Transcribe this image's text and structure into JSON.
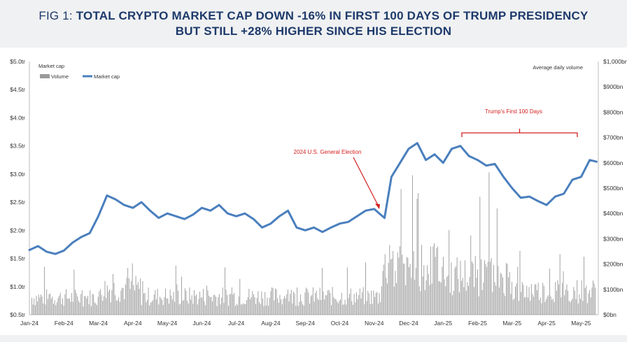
{
  "title": {
    "prefix": "FIG 1: ",
    "line1": "TOTAL CRYPTO MARKET CAP DOWN -16% IN FIRST 100 DAYS OF TRUMP PRESIDENCY",
    "line2": "BUT STILL +28% HIGHER SINCE HIS ELECTION"
  },
  "colors": {
    "title": "#1d3a6b",
    "market_cap_line": "#4a7fbd",
    "volume_bars": "#9a9a9a",
    "annotation": "#d42020",
    "background_band": "#f0f1f2"
  },
  "chart_data": {
    "type": "line",
    "left_axis_title": "Market cap",
    "right_axis_title": "Average daily volume",
    "left_ticks": [
      "$0.5tr",
      "$1.0tr",
      "$1.5tr",
      "$2.0tr",
      "$2.5tr",
      "$3.0tr",
      "$3.5tr",
      "$4.0tr",
      "$4.5tr",
      "$5.0tr"
    ],
    "right_ticks": [
      "$0bn",
      "$100bn",
      "$200bn",
      "$300bn",
      "$400bn",
      "$500bn",
      "$600bn",
      "$700bn",
      "$800bn",
      "$900bn",
      "$1,000bn"
    ],
    "x_ticks": [
      "Jan-24",
      "Feb-24",
      "Mar-24",
      "Apr-24",
      "May-24",
      "Jun-24",
      "Jul-24",
      "Aug-24",
      "Sep-24",
      "Oct-24",
      "Nov-24",
      "Dec-24",
      "Jan-25",
      "Feb-25",
      "Mar-25",
      "Apr-25",
      "May-25"
    ],
    "left_range": [
      0.5,
      5.0
    ],
    "right_range": [
      0,
      1000
    ],
    "legend": [
      {
        "name": "Volume",
        "type": "bar"
      },
      {
        "name": "Market cap",
        "type": "line"
      }
    ],
    "legend_position": "top-left",
    "annotations": {
      "election": "2024 U.S. General Election",
      "first_100_days": "Trump's First 100 Days"
    },
    "market_cap": {
      "name": "Market cap",
      "unit": "$tr",
      "x_month_index": [
        0,
        0.25,
        0.5,
        0.75,
        1.0,
        1.25,
        1.5,
        1.75,
        2.0,
        2.25,
        2.5,
        2.75,
        3.0,
        3.25,
        3.5,
        3.75,
        4.0,
        4.25,
        4.5,
        4.75,
        5.0,
        5.25,
        5.5,
        5.75,
        6.0,
        6.25,
        6.5,
        6.75,
        7.0,
        7.25,
        7.5,
        7.75,
        8.0,
        8.25,
        8.5,
        8.75,
        9.0,
        9.25,
        9.5,
        9.75,
        10.0,
        10.15,
        10.3,
        10.5,
        10.75,
        11.0,
        11.25,
        11.5,
        11.75,
        12.0,
        12.25,
        12.5,
        12.75,
        13.0,
        13.25,
        13.5,
        13.75,
        14.0,
        14.25,
        14.5,
        14.75,
        15.0,
        15.25,
        15.5,
        15.75,
        16.0,
        16.25,
        16.45
      ],
      "values": [
        1.65,
        1.72,
        1.62,
        1.58,
        1.64,
        1.78,
        1.88,
        1.95,
        2.25,
        2.62,
        2.55,
        2.45,
        2.4,
        2.5,
        2.35,
        2.22,
        2.3,
        2.25,
        2.2,
        2.28,
        2.4,
        2.35,
        2.45,
        2.3,
        2.25,
        2.3,
        2.2,
        2.05,
        2.12,
        2.25,
        2.35,
        2.05,
        2.0,
        2.05,
        1.97,
        2.05,
        2.12,
        2.15,
        2.25,
        2.35,
        2.38,
        2.3,
        2.22,
        2.95,
        3.2,
        3.45,
        3.55,
        3.25,
        3.35,
        3.2,
        3.45,
        3.5,
        3.32,
        3.25,
        3.15,
        3.18,
        2.95,
        2.75,
        2.58,
        2.6,
        2.52,
        2.45,
        2.6,
        2.65,
        2.9,
        2.95,
        3.25,
        3.22
      ]
    },
    "volume": {
      "name": "Volume",
      "unit": "$bn",
      "bars_per_month": 30
    }
  }
}
